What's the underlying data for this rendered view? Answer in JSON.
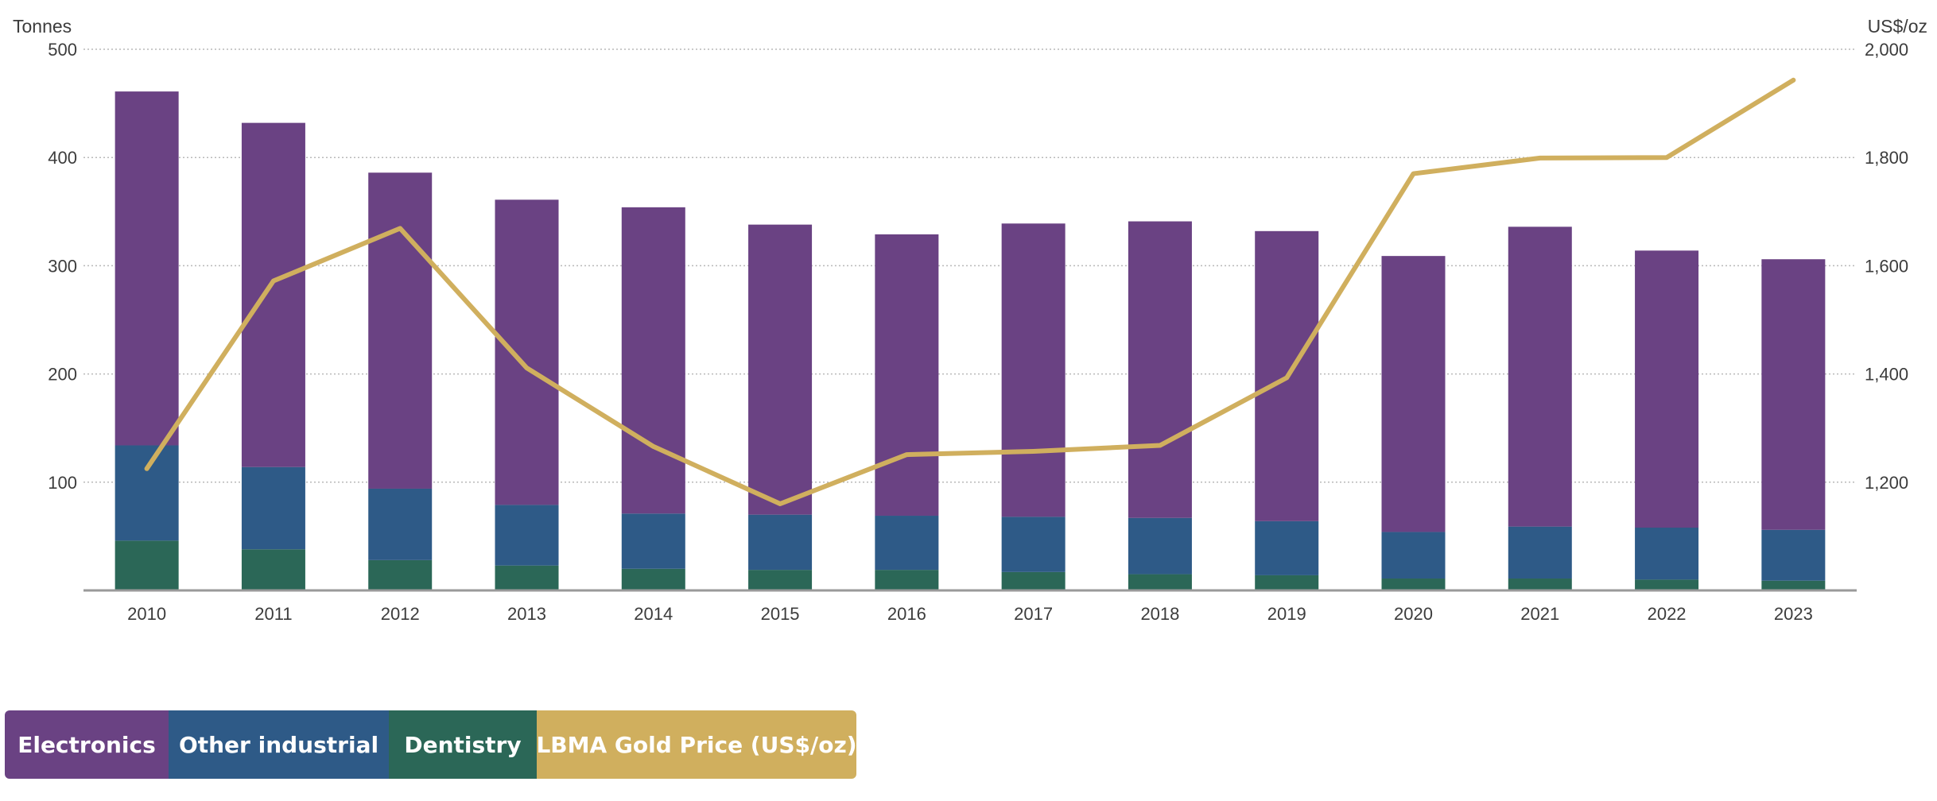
{
  "chart_data": {
    "type": "bar",
    "stacked": true,
    "categories": [
      "2010",
      "2011",
      "2012",
      "2013",
      "2014",
      "2015",
      "2016",
      "2017",
      "2018",
      "2019",
      "2020",
      "2021",
      "2022",
      "2023"
    ],
    "series": [
      {
        "name": "Dentistry",
        "color": "#2b6757",
        "values": [
          46,
          38,
          28,
          23,
          20,
          19,
          19,
          17,
          15,
          14,
          11,
          11,
          10,
          9
        ]
      },
      {
        "name": "Other industrial",
        "color": "#2e5a87",
        "values": [
          88,
          76,
          66,
          56,
          51,
          51,
          50,
          51,
          52,
          50,
          43,
          48,
          48,
          47
        ]
      },
      {
        "name": "Electronics",
        "color": "#6a4283",
        "values": [
          327,
          318,
          292,
          282,
          283,
          268,
          260,
          271,
          274,
          268,
          255,
          277,
          256,
          250
        ]
      }
    ],
    "line": {
      "name": "LBMA Gold Price (US$/oz)",
      "color": "#d0af5e",
      "axis": "right",
      "values": [
        1225,
        1572,
        1669,
        1411,
        1266,
        1160,
        1251,
        1257,
        1268,
        1393,
        1770,
        1799,
        1800,
        1943
      ]
    },
    "y_left": {
      "title": "Tonnes",
      "min": 0,
      "max": 500,
      "ticks": [
        100,
        200,
        300,
        400,
        500
      ],
      "tick_labels": [
        "100",
        "200",
        "300",
        "400",
        "500"
      ]
    },
    "y_right": {
      "title": "US$/oz",
      "min": 1000,
      "max": 2000,
      "ticks": [
        1200,
        1400,
        1600,
        1800,
        2000
      ],
      "tick_labels": [
        "1,200",
        "1,400",
        "1,600",
        "1,800",
        "2,000"
      ]
    },
    "grid": true,
    "legend_position": "bottom-left"
  },
  "legend": {
    "items": [
      {
        "label": "Electronics",
        "color": "#6a4283"
      },
      {
        "label": "Other industrial",
        "color": "#2e5a87"
      },
      {
        "label": "Dentistry",
        "color": "#2b6757"
      },
      {
        "label": "LBMA Gold Price (US$/oz)",
        "color": "#d0af5e"
      }
    ]
  }
}
